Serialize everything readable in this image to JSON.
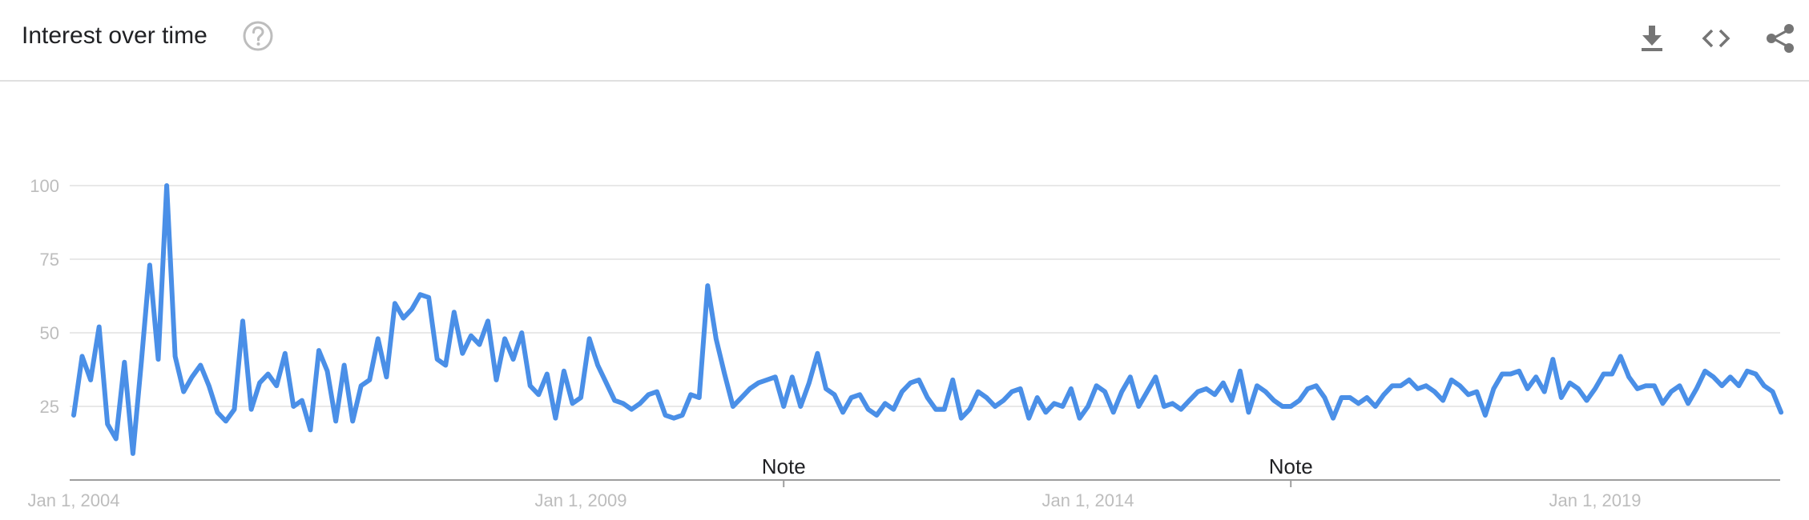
{
  "header": {
    "title": "Interest over time",
    "icons": [
      "help-icon",
      "download-icon",
      "embed-icon",
      "share-icon"
    ]
  },
  "colors": {
    "line": "#4a8fe7",
    "grid": "#e0e0e0",
    "tick_text": "#bdbdbd",
    "axis": "#9e9e9e",
    "title": "#202124"
  },
  "chart_data": {
    "type": "line",
    "title": "",
    "xlabel": "",
    "ylabel": "",
    "ylim": [
      0,
      100
    ],
    "yticks": [
      25,
      50,
      75,
      100
    ],
    "grid": true,
    "x_start": "2004-01",
    "x_step": "month",
    "xtick_labels": [
      "Jan 1, 2004",
      "Jan 1, 2009",
      "Jan 1, 2014",
      "Jan 1, 2019"
    ],
    "xtick_months": [
      0,
      60,
      120,
      180
    ],
    "annotations": [
      {
        "label": "Note",
        "month": 84
      },
      {
        "label": "Note",
        "month": 144
      }
    ],
    "series": [
      {
        "values": [
          22,
          42,
          34,
          52,
          19,
          14,
          40,
          9,
          40,
          73,
          41,
          100,
          42,
          30,
          35,
          39,
          32,
          23,
          20,
          24,
          54,
          24,
          33,
          36,
          32,
          43,
          25,
          27,
          17,
          44,
          37,
          20,
          39,
          20,
          32,
          34,
          48,
          35,
          60,
          55,
          58,
          63,
          62,
          41,
          39,
          57,
          43,
          49,
          46,
          54,
          34,
          48,
          41,
          50,
          32,
          29,
          36,
          21,
          37,
          26,
          28,
          48,
          39,
          33,
          27,
          26,
          24,
          26,
          29,
          30,
          22,
          21,
          22,
          29,
          28,
          66,
          48,
          36,
          25,
          28,
          31,
          33,
          34,
          35,
          25,
          35,
          25,
          33,
          43,
          31,
          29,
          23,
          28,
          29,
          24,
          22,
          26,
          24,
          30,
          33,
          34,
          28,
          24,
          24,
          34,
          21,
          24,
          30,
          28,
          25,
          27,
          30,
          31,
          21,
          28,
          23,
          26,
          25,
          31,
          21,
          25,
          32,
          30,
          23,
          30,
          35,
          25,
          30,
          35,
          25,
          26,
          24,
          27,
          30,
          31,
          29,
          33,
          27,
          37,
          23,
          32,
          30,
          27,
          25,
          25,
          27,
          31,
          32,
          28,
          21,
          28,
          28,
          26,
          28,
          25,
          29,
          32,
          32,
          34,
          31,
          32,
          30,
          27,
          34,
          32,
          29,
          30,
          22,
          31,
          36,
          36,
          37,
          31,
          35,
          30,
          41,
          28,
          33,
          31,
          27,
          31,
          36,
          36,
          42,
          35,
          31,
          32,
          32,
          26,
          30,
          32,
          26,
          31,
          37,
          35,
          32,
          35,
          32,
          37,
          36,
          32,
          30,
          23
        ]
      }
    ]
  }
}
